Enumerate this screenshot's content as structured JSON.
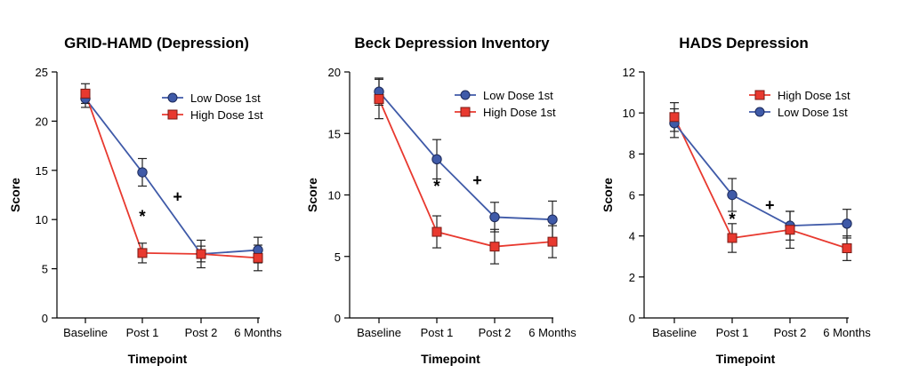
{
  "chart_data": [
    {
      "type": "line",
      "title": "GRID-HAMD (Depression)",
      "xlabel": "Timepoint",
      "ylabel": "Score",
      "categories": [
        "Baseline",
        "Post 1",
        "Post 2",
        "6 Months"
      ],
      "ylim": [
        0,
        25
      ],
      "yticks": [
        0,
        5,
        10,
        15,
        20,
        25
      ],
      "grid": false,
      "legend_position": "top-right",
      "series": [
        {
          "name": "Low Dose 1st",
          "marker": "circle",
          "color": "#3f5aa8",
          "values": [
            22.3,
            14.8,
            6.5,
            6.9
          ],
          "errors": [
            0.9,
            1.4,
            0.8,
            1.3
          ]
        },
        {
          "name": "High Dose 1st",
          "marker": "square",
          "color": "#e8392f",
          "values": [
            22.8,
            6.6,
            6.5,
            6.1
          ],
          "errors": [
            1.0,
            1.0,
            1.4,
            1.3
          ]
        }
      ],
      "annotations": [
        {
          "text": "*",
          "x": 1,
          "y": 10.3
        },
        {
          "text": "+",
          "x": 1.6,
          "y": 12.3
        }
      ]
    },
    {
      "type": "line",
      "title": "Beck Depression Inventory",
      "xlabel": "Timepoint",
      "ylabel": "Score",
      "categories": [
        "Baseline",
        "Post 1",
        "Post 2",
        "6 Months"
      ],
      "ylim": [
        0,
        20
      ],
      "yticks": [
        0,
        5,
        10,
        15,
        20
      ],
      "grid": false,
      "legend_position": "top-right",
      "series": [
        {
          "name": "Low Dose 1st",
          "marker": "circle",
          "color": "#3f5aa8",
          "values": [
            18.4,
            12.9,
            8.2,
            8.0
          ],
          "errors": [
            1.1,
            1.6,
            1.2,
            1.5
          ]
        },
        {
          "name": "High Dose 1st",
          "marker": "square",
          "color": "#e8392f",
          "values": [
            17.8,
            7.0,
            5.8,
            6.2
          ],
          "errors": [
            1.6,
            1.3,
            1.4,
            1.3
          ]
        }
      ],
      "annotations": [
        {
          "text": "*",
          "x": 1,
          "y": 10.7
        },
        {
          "text": "+",
          "x": 1.7,
          "y": 11.2
        }
      ]
    },
    {
      "type": "line",
      "title": "HADS Depression",
      "xlabel": "Timepoint",
      "ylabel": "Score",
      "categories": [
        "Baseline",
        "Post 1",
        "Post 2",
        "6 Months"
      ],
      "ylim": [
        0,
        12
      ],
      "yticks": [
        0,
        2,
        4,
        6,
        8,
        10,
        12
      ],
      "grid": false,
      "legend_position": "top-right",
      "series": [
        {
          "name": "High Dose 1st",
          "marker": "square",
          "color": "#e8392f",
          "values": [
            9.8,
            3.9,
            4.3,
            3.4
          ],
          "errors": [
            0.7,
            0.7,
            0.9,
            0.6
          ]
        },
        {
          "name": "Low Dose 1st",
          "marker": "circle",
          "color": "#3f5aa8",
          "values": [
            9.5,
            6.0,
            4.5,
            4.6
          ],
          "errors": [
            0.7,
            0.8,
            0.7,
            0.7
          ]
        }
      ],
      "annotations": [
        {
          "text": "*",
          "x": 1,
          "y": 4.8
        },
        {
          "text": "+",
          "x": 1.65,
          "y": 5.5
        }
      ]
    }
  ]
}
